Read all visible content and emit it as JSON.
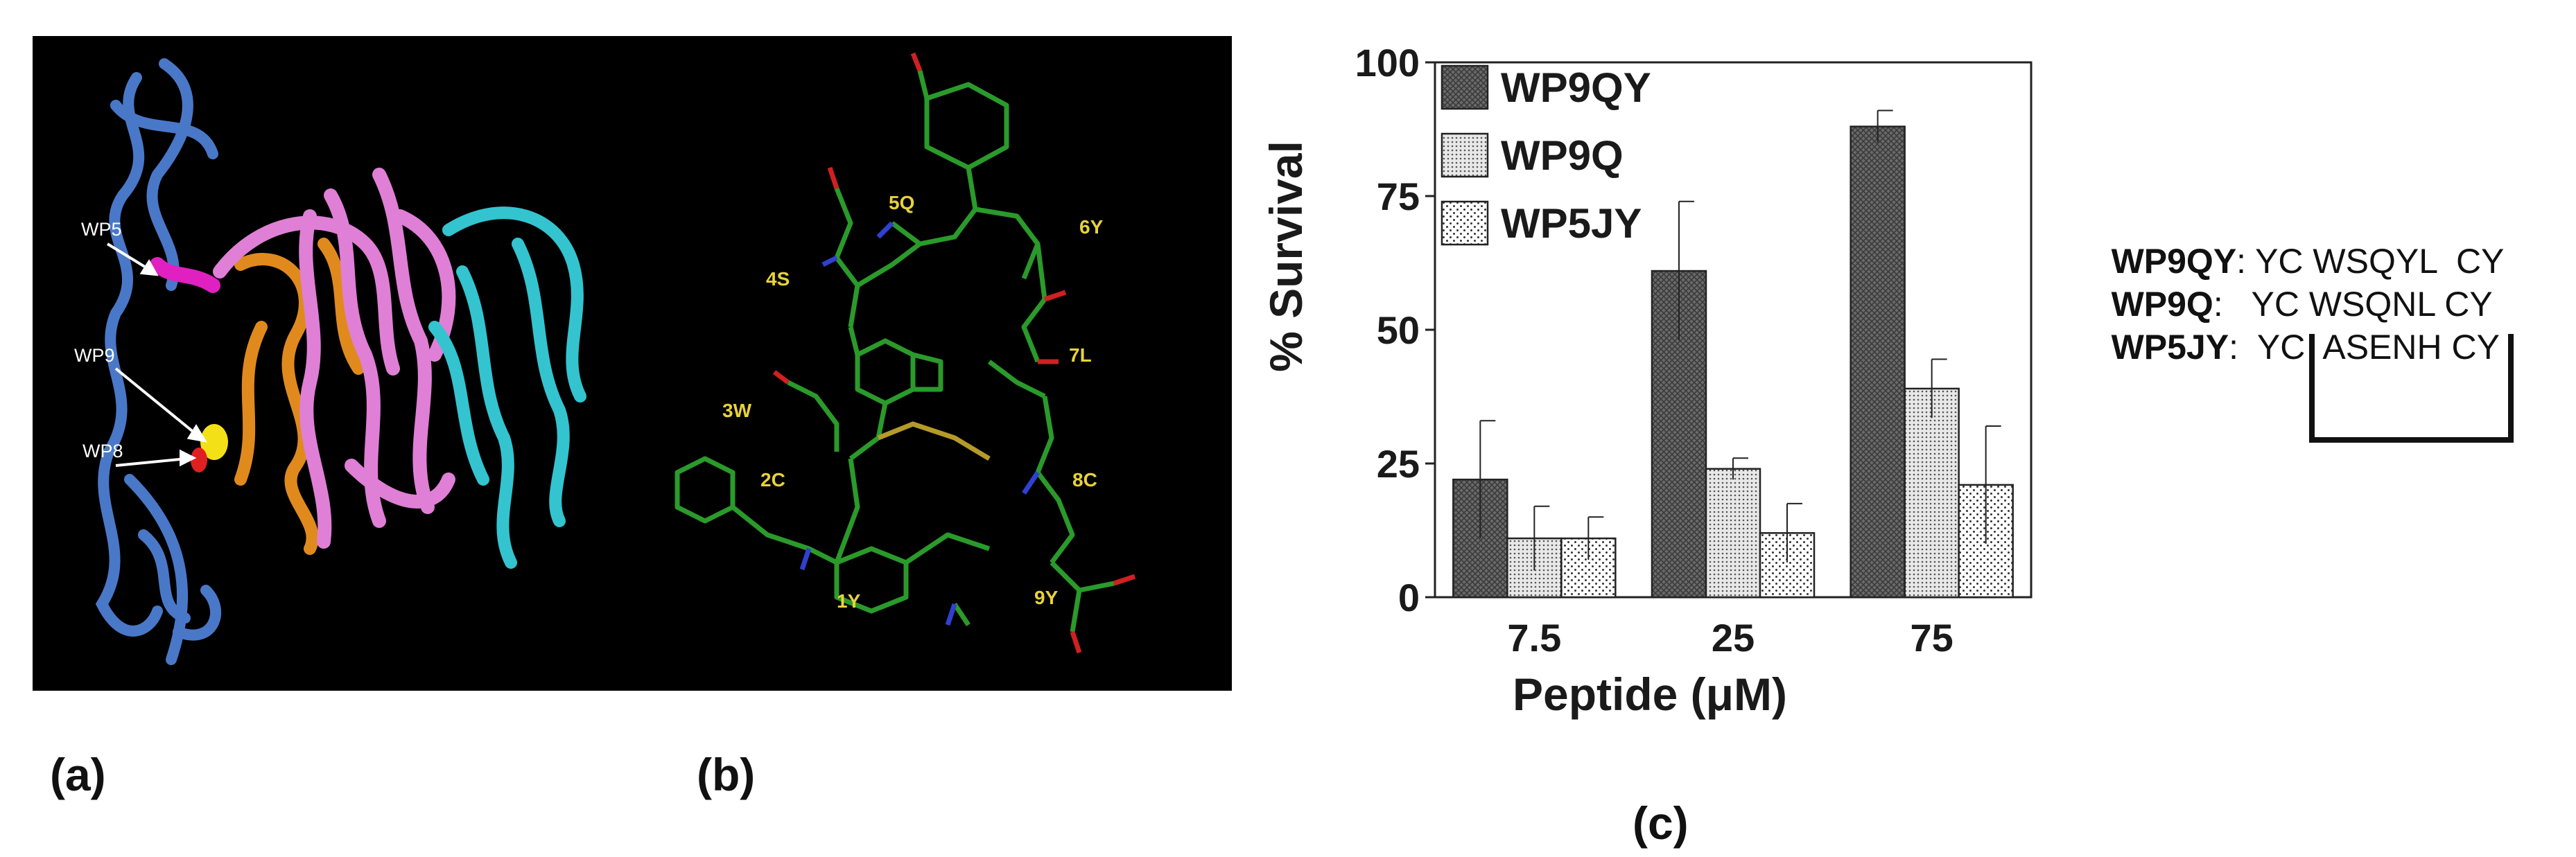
{
  "panel_a": {
    "label": "(a)",
    "annotations": [
      "WP5",
      "WP9",
      "WP8"
    ]
  },
  "panel_b": {
    "label": "(b)",
    "residues": [
      "5Q",
      "6Y",
      "4S",
      "7L",
      "3W",
      "8C",
      "2C",
      "1Y",
      "9Y"
    ]
  },
  "panel_c": {
    "label": "(c)"
  },
  "chart_data": {
    "type": "bar",
    "categories": [
      "7.5",
      "25",
      "75"
    ],
    "xlabel": "Peptide (μM)",
    "ylabel": "% Survival",
    "ylim": [
      0,
      100
    ],
    "yticks": [
      0,
      25,
      50,
      75,
      100
    ],
    "legend_position": "top-left",
    "series": [
      {
        "name": "WP9QY",
        "values": [
          22,
          61,
          88
        ],
        "errors": [
          11,
          13,
          3
        ]
      },
      {
        "name": "WP9Q",
        "values": [
          11,
          24,
          39
        ],
        "errors": [
          6,
          2,
          5.5
        ]
      },
      {
        "name": "WP5JY",
        "values": [
          11,
          12,
          21
        ],
        "errors": [
          4,
          5.5,
          11
        ]
      }
    ]
  },
  "sequences": [
    {
      "name": "WP9QY",
      "sep": ":",
      "sequence": "YC WSQYL  CY"
    },
    {
      "name": "WP9Q",
      "sep": ":",
      "sequence": "   YC WSQNL CY"
    },
    {
      "name": "WP5JY",
      "sep": ":",
      "sequence": "  YC  ASENH CY"
    }
  ]
}
